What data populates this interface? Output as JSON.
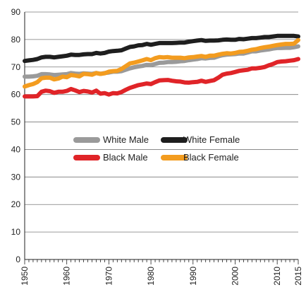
{
  "chart_data": {
    "type": "line",
    "title": "",
    "xlabel": "",
    "ylabel": "",
    "xlim": [
      1950,
      2015
    ],
    "ylim": [
      0,
      90
    ],
    "y_ticks": [
      0,
      10,
      20,
      30,
      40,
      50,
      60,
      70,
      80,
      90
    ],
    "x_ticks": [
      1950,
      1960,
      1970,
      1980,
      1990,
      2000,
      2010,
      2015
    ],
    "grid": "horizontal",
    "legend": "center",
    "colors": {
      "White Male": "#9a9a9a",
      "White Female": "#1e1e1e",
      "Black Male": "#e02428",
      "Black Female": "#f39c1f"
    },
    "series": [
      {
        "name": "White Male",
        "x": [
          1950,
          1951,
          1952,
          1953,
          1954,
          1955,
          1956,
          1957,
          1958,
          1959,
          1960,
          1961,
          1962,
          1963,
          1964,
          1965,
          1966,
          1967,
          1968,
          1969,
          1970,
          1971,
          1972,
          1973,
          1974,
          1975,
          1976,
          1977,
          1978,
          1979,
          1980,
          1981,
          1982,
          1983,
          1984,
          1985,
          1986,
          1987,
          1988,
          1989,
          1990,
          1991,
          1992,
          1993,
          1994,
          1995,
          1996,
          1997,
          1998,
          1999,
          2000,
          2001,
          2002,
          2003,
          2004,
          2005,
          2006,
          2007,
          2008,
          2009,
          2010,
          2011,
          2012,
          2013,
          2014,
          2015
        ],
        "values": [
          66.5,
          66.5,
          66.6,
          66.8,
          67.4,
          67.4,
          67.3,
          67.1,
          67.2,
          67.3,
          67.4,
          67.8,
          67.6,
          67.5,
          67.7,
          67.6,
          67.5,
          67.8,
          67.5,
          67.8,
          68.0,
          68.3,
          68.3,
          68.5,
          69.0,
          69.5,
          69.9,
          70.2,
          70.4,
          70.8,
          70.7,
          71.1,
          71.5,
          71.6,
          71.8,
          71.8,
          71.9,
          72.1,
          72.2,
          72.5,
          72.7,
          72.9,
          73.2,
          73.1,
          73.3,
          73.4,
          73.9,
          74.3,
          74.5,
          74.6,
          74.7,
          74.9,
          74.9,
          75.3,
          75.7,
          75.7,
          76.0,
          76.2,
          76.4,
          76.7,
          76.9,
          76.9,
          77.0,
          77.0,
          77.2,
          77.5
        ]
      },
      {
        "name": "White Female",
        "x": [
          1950,
          1951,
          1952,
          1953,
          1954,
          1955,
          1956,
          1957,
          1958,
          1959,
          1960,
          1961,
          1962,
          1963,
          1964,
          1965,
          1966,
          1967,
          1968,
          1969,
          1970,
          1971,
          1972,
          1973,
          1974,
          1975,
          1976,
          1977,
          1978,
          1979,
          1980,
          1981,
          1982,
          1983,
          1984,
          1985,
          1986,
          1987,
          1988,
          1989,
          1990,
          1991,
          1992,
          1993,
          1994,
          1995,
          1996,
          1997,
          1998,
          1999,
          2000,
          2001,
          2002,
          2003,
          2004,
          2005,
          2006,
          2007,
          2008,
          2009,
          2010,
          2011,
          2012,
          2013,
          2014,
          2015
        ],
        "values": [
          72.2,
          72.4,
          72.6,
          72.9,
          73.5,
          73.7,
          73.7,
          73.5,
          73.7,
          73.9,
          74.1,
          74.5,
          74.4,
          74.4,
          74.6,
          74.7,
          74.7,
          75.1,
          74.9,
          75.1,
          75.6,
          75.8,
          75.9,
          76.1,
          76.7,
          77.3,
          77.5,
          77.9,
          78.0,
          78.4,
          78.1,
          78.4,
          78.7,
          78.7,
          78.7,
          78.7,
          78.8,
          78.9,
          78.9,
          79.2,
          79.4,
          79.6,
          79.8,
          79.5,
          79.6,
          79.6,
          79.7,
          79.9,
          80.0,
          79.9,
          79.9,
          80.2,
          80.1,
          80.3,
          80.5,
          80.5,
          80.7,
          80.9,
          80.9,
          81.1,
          81.3,
          81.3,
          81.3,
          81.3,
          81.3,
          81.1
        ]
      },
      {
        "name": "Black Male",
        "x": [
          1950,
          1951,
          1952,
          1953,
          1954,
          1955,
          1956,
          1957,
          1958,
          1959,
          1960,
          1961,
          1962,
          1963,
          1964,
          1965,
          1966,
          1967,
          1968,
          1969,
          1970,
          1971,
          1972,
          1973,
          1974,
          1975,
          1976,
          1977,
          1978,
          1979,
          1980,
          1981,
          1982,
          1983,
          1984,
          1985,
          1986,
          1987,
          1988,
          1989,
          1990,
          1991,
          1992,
          1993,
          1994,
          1995,
          1996,
          1997,
          1998,
          1999,
          2000,
          2001,
          2002,
          2003,
          2004,
          2005,
          2006,
          2007,
          2008,
          2009,
          2010,
          2011,
          2012,
          2013,
          2014,
          2015
        ],
        "values": [
          59.3,
          59.3,
          59.3,
          59.4,
          61.0,
          61.4,
          61.2,
          60.6,
          61.0,
          61.0,
          61.3,
          62.0,
          61.5,
          60.9,
          61.3,
          61.1,
          60.7,
          61.4,
          60.3,
          60.5,
          60.0,
          60.5,
          60.4,
          60.9,
          61.7,
          62.4,
          62.9,
          63.4,
          63.7,
          64.0,
          63.8,
          64.5,
          65.1,
          65.2,
          65.3,
          65.0,
          64.8,
          64.7,
          64.4,
          64.3,
          64.5,
          64.6,
          65.0,
          64.6,
          64.9,
          65.2,
          66.1,
          67.2,
          67.6,
          67.8,
          68.2,
          68.6,
          68.8,
          69.0,
          69.5,
          69.5,
          69.7,
          70.0,
          70.6,
          71.1,
          71.8,
          72.0,
          72.1,
          72.3,
          72.5,
          72.9
        ]
      },
      {
        "name": "Black Female",
        "x": [
          1950,
          1951,
          1952,
          1953,
          1954,
          1955,
          1956,
          1957,
          1958,
          1959,
          1960,
          1961,
          1962,
          1963,
          1964,
          1965,
          1966,
          1967,
          1968,
          1969,
          1970,
          1971,
          1972,
          1973,
          1974,
          1975,
          1976,
          1977,
          1978,
          1979,
          1980,
          1981,
          1982,
          1983,
          1984,
          1985,
          1986,
          1987,
          1988,
          1989,
          1990,
          1991,
          1992,
          1993,
          1994,
          1995,
          1996,
          1997,
          1998,
          1999,
          2000,
          2001,
          2002,
          2003,
          2004,
          2005,
          2006,
          2007,
          2008,
          2009,
          2010,
          2011,
          2012,
          2013,
          2014,
          2015
        ],
        "values": [
          62.9,
          63.4,
          63.8,
          64.5,
          65.9,
          66.1,
          66.1,
          65.5,
          65.8,
          66.5,
          66.3,
          67.1,
          66.9,
          66.6,
          67.5,
          67.4,
          67.2,
          67.8,
          67.5,
          67.7,
          68.3,
          68.5,
          68.6,
          69.3,
          70.3,
          71.3,
          71.6,
          72.0,
          72.4,
          72.9,
          72.5,
          73.2,
          73.6,
          73.5,
          73.6,
          73.4,
          73.4,
          73.4,
          73.2,
          73.5,
          73.6,
          73.8,
          74.0,
          73.7,
          74.1,
          74.1,
          74.5,
          74.8,
          75.0,
          74.9,
          75.1,
          75.5,
          75.6,
          75.9,
          76.3,
          76.5,
          76.9,
          77.2,
          77.4,
          77.7,
          78.0,
          78.2,
          78.4,
          78.4,
          78.5,
          79.8
        ]
      }
    ]
  },
  "legend": {
    "items": [
      {
        "name": "White Male",
        "color": "#9a9a9a"
      },
      {
        "name": "White Female",
        "color": "#1e1e1e"
      },
      {
        "name": "Black Male",
        "color": "#e02428"
      },
      {
        "name": "Black Female",
        "color": "#f39c1f"
      }
    ]
  }
}
